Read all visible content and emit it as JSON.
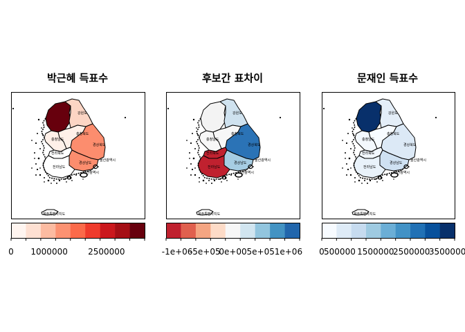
{
  "panels": [
    {
      "title": "박근혜 득표수",
      "scale": "reds",
      "legend": {
        "colors": [
          "#fff5f0",
          "#fee0d2",
          "#fcbba1",
          "#fc9272",
          "#fb6a4a",
          "#ef3b2c",
          "#cb181d",
          "#a50f15",
          "#67000d"
        ],
        "tick_labels": [
          "0",
          "1000000",
          "2500000"
        ],
        "tick_values": [
          0,
          1000000,
          2500000
        ],
        "range": [
          0,
          3500000
        ]
      },
      "region_fills": {
        "gyeonggi": "#67000d",
        "gangwon": "#fcd5c4",
        "chungbuk": "#fff0e8",
        "chungnam": "#fff0e8",
        "jeonbuk": "#ffffff",
        "jeonnam": "#ffffff",
        "gyeongbuk": "#fc8d6e",
        "gyeongnam": "#fc8d6e",
        "jeju": "#ffffff"
      }
    },
    {
      "title": "후보간 표차이",
      "scale": "rdbu",
      "legend": {
        "colors": [
          "#c0212f",
          "#e0604e",
          "#f4a582",
          "#fddbc7",
          "#f7f7f7",
          "#d1e5f0",
          "#92c5de",
          "#4393c3",
          "#2166ac"
        ],
        "tick_labels": [
          "-1e+06",
          "-5e+05",
          "0e+00",
          "5e+05",
          "1e+06"
        ],
        "tick_values": [
          -1000000,
          -500000,
          0,
          500000,
          1000000
        ],
        "range": [
          -1200000,
          1200000
        ]
      },
      "region_fills": {
        "gyeonggi": "#f3f3f3",
        "gangwon": "#cfe2ef",
        "chungbuk": "#f7f7f7",
        "chungnam": "#f7f7f7",
        "jeonbuk": "#c0212f",
        "jeonnam": "#c0212f",
        "gyeongbuk": "#2b73b6",
        "gyeongnam": "#a6cde3",
        "jeju": "#ffffff"
      }
    },
    {
      "title": "문재인 득표수",
      "scale": "blues",
      "legend": {
        "colors": [
          "#f7fbff",
          "#deebf7",
          "#c6dbef",
          "#9ecae1",
          "#6baed6",
          "#4292c6",
          "#2171b5",
          "#08519c",
          "#08306b"
        ],
        "tick_labels": [
          "0",
          "500000",
          "1500000",
          "2500000",
          "3500000"
        ],
        "tick_values": [
          0,
          500000,
          1500000,
          2500000,
          3500000
        ],
        "range": [
          0,
          3700000
        ]
      },
      "region_fills": {
        "gyeonggi": "#08306b",
        "gangwon": "#e4eef8",
        "chungbuk": "#f7fbff",
        "chungnam": "#f3f8fd",
        "jeonbuk": "#f2f7fd",
        "jeonnam": "#e9f2fa",
        "gyeongbuk": "#dce9f6",
        "gyeongnam": "#cfe1f2",
        "jeju": "#ffffff"
      }
    }
  ],
  "region_labels": {
    "gangwon": "강원도",
    "chungbuk": "충청북도",
    "chungnam": "충청남도",
    "gyeongbuk": "경상북도",
    "jeonbuk": "전라북도",
    "gyeongnam": "경상남도",
    "jeonnam": "전라남도",
    "ulsan": "울산광역시",
    "busan": "부산광역시",
    "jeju": "제주특별자치도"
  }
}
